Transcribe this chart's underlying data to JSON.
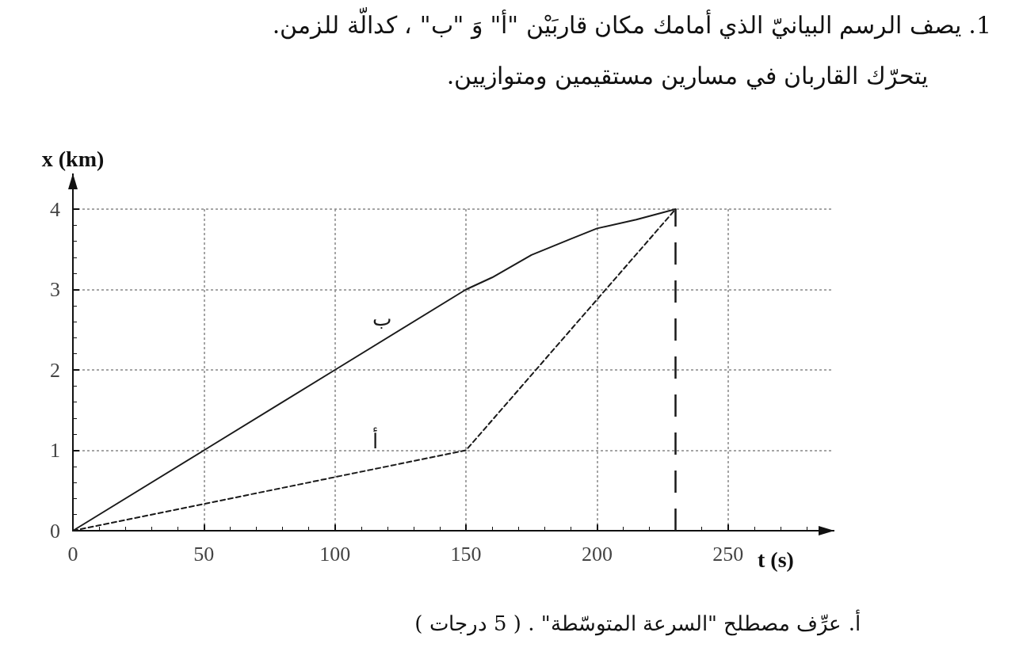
{
  "chart_data": {
    "type": "line",
    "title": "1.   يصف الرسم البيانيّ الذي أمامك مكان قاربَيْن \"أ\" وَ \"ب\" ، كدالّة للزمن.",
    "subtitle": "يتحرّك القاربان في مسارين مستقيمين ومتوازيين.",
    "xlabel": "t (s)",
    "ylabel": "x (km)",
    "xlim": [
      0,
      290
    ],
    "xticks": [
      0,
      50,
      100,
      150,
      200,
      250
    ],
    "ylim": [
      0,
      4
    ],
    "yticks": [
      0,
      1,
      2,
      3,
      4
    ],
    "grid": true,
    "marker": "none",
    "series": [
      {
        "name": "ب",
        "color": "#1a1a1a",
        "line_style": "solid",
        "x": [
          0,
          50,
          100,
          150,
          160,
          175,
          190,
          200,
          215,
          230
        ],
        "values": [
          0,
          1,
          2,
          3,
          3.15,
          3.43,
          3.63,
          3.76,
          3.87,
          4
        ]
      },
      {
        "name": "أ",
        "color": "#1a1a1a",
        "line_style": "dashed",
        "x": [
          0,
          150,
          230
        ],
        "values": [
          0,
          1,
          4
        ]
      }
    ],
    "ref_lines": [
      {
        "axis": "x",
        "value": 230,
        "color": "#1a1a1a",
        "line_style": "dashed"
      }
    ],
    "annotations": [
      "أ.    عرِّف مصطلح \"السرعة المتوسّطة\" .   ( 5 درجات )"
    ]
  }
}
